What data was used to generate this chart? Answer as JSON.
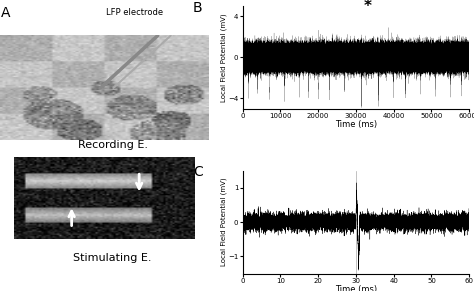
{
  "panel_B": {
    "xlabel": "Time (ms)",
    "ylabel": "Local Field Potential (mV)",
    "xlim": [
      0,
      60000
    ],
    "ylim": [
      -5,
      5
    ],
    "yticks": [
      -4,
      0,
      4
    ],
    "xticks": [
      0,
      10000,
      20000,
      30000,
      40000,
      50000,
      60000
    ],
    "xticklabels": [
      "0",
      "10000",
      "20000",
      "30000",
      "40000",
      "50000",
      "60000"
    ],
    "asterisk_x": 33000,
    "asterisk_y": 4.2,
    "noise_amplitude": 0.55,
    "spike_times": [
      1500,
      4000,
      7000,
      11000,
      15000,
      17500,
      20000,
      23000,
      27000,
      31500,
      36000,
      40000,
      43000,
      47000,
      51000,
      55000,
      58000
    ],
    "spike_amplitudes": [
      -3.0,
      -2.5,
      -2.8,
      -3.5,
      -2.5,
      -3.0,
      -2.8,
      -3.2,
      -2.5,
      -4.2,
      -3.8,
      -3.0,
      -2.8,
      -2.5,
      -3.2,
      -2.8,
      -3.0
    ],
    "label": "B"
  },
  "panel_C": {
    "xlabel": "Time (ms)",
    "ylabel": "Local Field Potential (mV)",
    "xlim": [
      0,
      60
    ],
    "ylim": [
      -1.5,
      1.5
    ],
    "yticks": [
      -1,
      0,
      1
    ],
    "xticks": [
      0,
      10,
      20,
      30,
      40,
      50,
      60
    ],
    "xticklabels": [
      "0",
      "10",
      "20",
      "30",
      "40",
      "50",
      "60"
    ],
    "stim_time": 30,
    "stim_up_amp": 1.0,
    "stim_down_amp": -1.3,
    "noise_amplitude": 0.12,
    "label": "C"
  },
  "panel_A": {
    "label": "A",
    "recording_label": "Recording E.",
    "stimulating_label": "Stimulating E.",
    "lfp_label": "LFP electrode"
  },
  "bg_color": "#ffffff",
  "text_color": "#000000",
  "signal_color": "#000000",
  "font_size": 7
}
